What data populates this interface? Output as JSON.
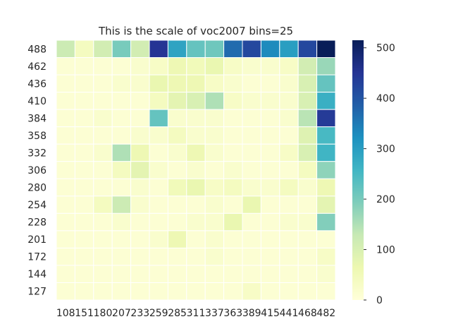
{
  "chart_data": {
    "type": "heatmap",
    "title": "This is the scale of voc2007 bins=25",
    "xlabel": "",
    "ylabel": "",
    "x_categories": [
      "108",
      "151",
      "180",
      "207",
      "233",
      "259",
      "285",
      "311",
      "337",
      "363",
      "389",
      "415",
      "441",
      "468",
      "482"
    ],
    "y_categories": [
      "488",
      "462",
      "436",
      "410",
      "384",
      "358",
      "332",
      "306",
      "280",
      "254",
      "228",
      "201",
      "172",
      "144",
      "127"
    ],
    "values": [
      [
        120,
        40,
        110,
        200,
        110,
        450,
        290,
        220,
        210,
        370,
        420,
        330,
        300,
        420,
        515
      ],
      [
        10,
        10,
        10,
        10,
        20,
        30,
        60,
        50,
        70,
        30,
        20,
        20,
        30,
        110,
        170
      ],
      [
        10,
        10,
        10,
        20,
        20,
        70,
        60,
        60,
        30,
        20,
        10,
        10,
        20,
        100,
        220
      ],
      [
        10,
        10,
        10,
        10,
        10,
        40,
        80,
        100,
        150,
        30,
        20,
        20,
        20,
        100,
        270
      ],
      [
        10,
        10,
        20,
        10,
        10,
        220,
        20,
        20,
        20,
        10,
        10,
        10,
        20,
        140,
        440
      ],
      [
        10,
        10,
        10,
        10,
        20,
        20,
        40,
        20,
        20,
        10,
        10,
        10,
        10,
        90,
        250
      ],
      [
        10,
        10,
        20,
        150,
        60,
        10,
        20,
        60,
        20,
        10,
        10,
        10,
        30,
        100,
        260
      ],
      [
        10,
        10,
        10,
        40,
        80,
        20,
        10,
        20,
        10,
        20,
        10,
        10,
        10,
        40,
        180
      ],
      [
        10,
        10,
        10,
        10,
        20,
        10,
        50,
        70,
        30,
        40,
        20,
        20,
        40,
        20,
        60
      ],
      [
        10,
        10,
        40,
        120,
        20,
        10,
        10,
        10,
        20,
        10,
        70,
        10,
        10,
        10,
        80
      ],
      [
        10,
        10,
        10,
        20,
        10,
        10,
        10,
        20,
        20,
        70,
        10,
        10,
        20,
        20,
        190
      ],
      [
        10,
        10,
        10,
        10,
        10,
        20,
        60,
        10,
        20,
        10,
        10,
        10,
        10,
        10,
        10
      ],
      [
        10,
        10,
        10,
        10,
        10,
        10,
        10,
        10,
        20,
        10,
        10,
        10,
        10,
        10,
        30
      ],
      [
        10,
        10,
        10,
        10,
        10,
        10,
        10,
        10,
        10,
        10,
        10,
        10,
        10,
        10,
        20
      ],
      [
        10,
        10,
        10,
        10,
        10,
        10,
        10,
        10,
        10,
        10,
        30,
        10,
        10,
        10,
        10
      ]
    ],
    "colorbar": {
      "min": 0,
      "max": 515,
      "ticks": [
        "0",
        "100",
        "200",
        "300",
        "400",
        "500"
      ],
      "colormap": "YlGnBu"
    },
    "grid": true,
    "legend": "right"
  }
}
